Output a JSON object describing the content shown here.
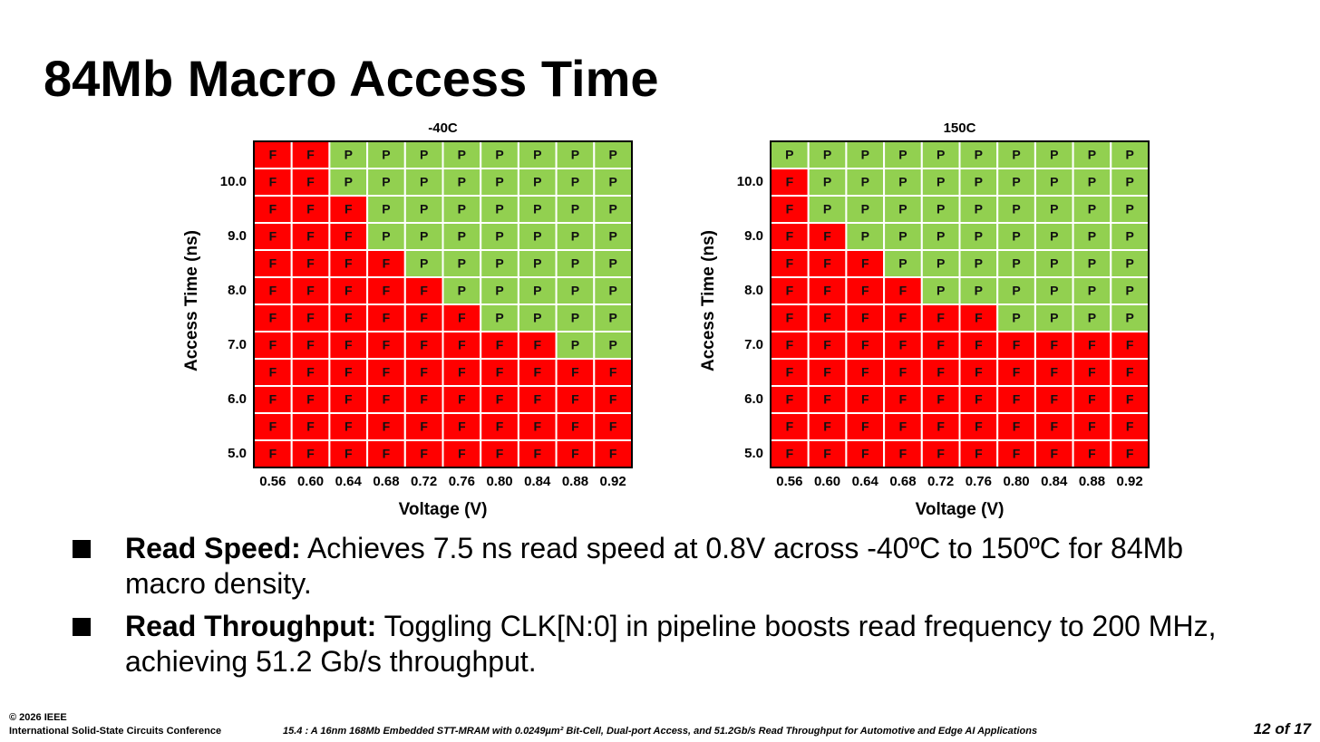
{
  "title": "84Mb Macro Access Time",
  "cell_colors": {
    "P": "#92d050",
    "F": "#ff0000"
  },
  "plots": [
    {
      "title": "-40C",
      "x_label": "Voltage (V)",
      "y_label": "Access Time (ns)",
      "x_labels": [
        "0.56",
        "0.60",
        "0.64",
        "0.68",
        "0.72",
        "0.76",
        "0.80",
        "0.84",
        "0.88",
        "0.92"
      ],
      "y_labels": [
        null,
        "10.0",
        null,
        "9.0",
        null,
        "8.0",
        null,
        "7.0",
        null,
        "6.0",
        null,
        "5.0"
      ],
      "cells": [
        [
          "F",
          "F",
          "P",
          "P",
          "P",
          "P",
          "P",
          "P",
          "P",
          "P"
        ],
        [
          "F",
          "F",
          "P",
          "P",
          "P",
          "P",
          "P",
          "P",
          "P",
          "P"
        ],
        [
          "F",
          "F",
          "F",
          "P",
          "P",
          "P",
          "P",
          "P",
          "P",
          "P"
        ],
        [
          "F",
          "F",
          "F",
          "P",
          "P",
          "P",
          "P",
          "P",
          "P",
          "P"
        ],
        [
          "F",
          "F",
          "F",
          "F",
          "P",
          "P",
          "P",
          "P",
          "P",
          "P"
        ],
        [
          "F",
          "F",
          "F",
          "F",
          "F",
          "P",
          "P",
          "P",
          "P",
          "P"
        ],
        [
          "F",
          "F",
          "F",
          "F",
          "F",
          "F",
          "P",
          "P",
          "P",
          "P"
        ],
        [
          "F",
          "F",
          "F",
          "F",
          "F",
          "F",
          "F",
          "F",
          "P",
          "P"
        ],
        [
          "F",
          "F",
          "F",
          "F",
          "F",
          "F",
          "F",
          "F",
          "F",
          "F"
        ],
        [
          "F",
          "F",
          "F",
          "F",
          "F",
          "F",
          "F",
          "F",
          "F",
          "F"
        ],
        [
          "F",
          "F",
          "F",
          "F",
          "F",
          "F",
          "F",
          "F",
          "F",
          "F"
        ],
        [
          "F",
          "F",
          "F",
          "F",
          "F",
          "F",
          "F",
          "F",
          "F",
          "F"
        ]
      ]
    },
    {
      "title": "150C",
      "x_label": "Voltage (V)",
      "y_label": "Access Time (ns)",
      "x_labels": [
        "0.56",
        "0.60",
        "0.64",
        "0.68",
        "0.72",
        "0.76",
        "0.80",
        "0.84",
        "0.88",
        "0.92"
      ],
      "y_labels": [
        null,
        "10.0",
        null,
        "9.0",
        null,
        "8.0",
        null,
        "7.0",
        null,
        "6.0",
        null,
        "5.0"
      ],
      "cells": [
        [
          "P",
          "P",
          "P",
          "P",
          "P",
          "P",
          "P",
          "P",
          "P",
          "P"
        ],
        [
          "F",
          "P",
          "P",
          "P",
          "P",
          "P",
          "P",
          "P",
          "P",
          "P"
        ],
        [
          "F",
          "P",
          "P",
          "P",
          "P",
          "P",
          "P",
          "P",
          "P",
          "P"
        ],
        [
          "F",
          "F",
          "P",
          "P",
          "P",
          "P",
          "P",
          "P",
          "P",
          "P"
        ],
        [
          "F",
          "F",
          "F",
          "P",
          "P",
          "P",
          "P",
          "P",
          "P",
          "P"
        ],
        [
          "F",
          "F",
          "F",
          "F",
          "P",
          "P",
          "P",
          "P",
          "P",
          "P"
        ],
        [
          "F",
          "F",
          "F",
          "F",
          "F",
          "F",
          "P",
          "P",
          "P",
          "P"
        ],
        [
          "F",
          "F",
          "F",
          "F",
          "F",
          "F",
          "F",
          "F",
          "F",
          "F"
        ],
        [
          "F",
          "F",
          "F",
          "F",
          "F",
          "F",
          "F",
          "F",
          "F",
          "F"
        ],
        [
          "F",
          "F",
          "F",
          "F",
          "F",
          "F",
          "F",
          "F",
          "F",
          "F"
        ],
        [
          "F",
          "F",
          "F",
          "F",
          "F",
          "F",
          "F",
          "F",
          "F",
          "F"
        ],
        [
          "F",
          "F",
          "F",
          "F",
          "F",
          "F",
          "F",
          "F",
          "F",
          "F"
        ]
      ]
    }
  ],
  "bullets": [
    {
      "label": "Read Speed:",
      "text": "Achieves 7.5 ns read speed at 0.8V across -40ºC to 150ºC for 84Mb macro density."
    },
    {
      "label": "Read Throughput:",
      "text": "Toggling CLK[N:0] in pipeline boosts read frequency to 200 MHz, achieving 51.2 Gb/s throughput."
    }
  ],
  "footer": {
    "copyright": "© 2026 IEEE",
    "conference": "International Solid-State Circuits Conference",
    "paper": "15.4 : A 16nm 168Mb Embedded STT-MRAM with 0.0249µm² Bit-Cell, Dual-port Access, and 51.2Gb/s Read Throughput for Automotive and Edge AI Applications",
    "page": "12 of 17"
  }
}
